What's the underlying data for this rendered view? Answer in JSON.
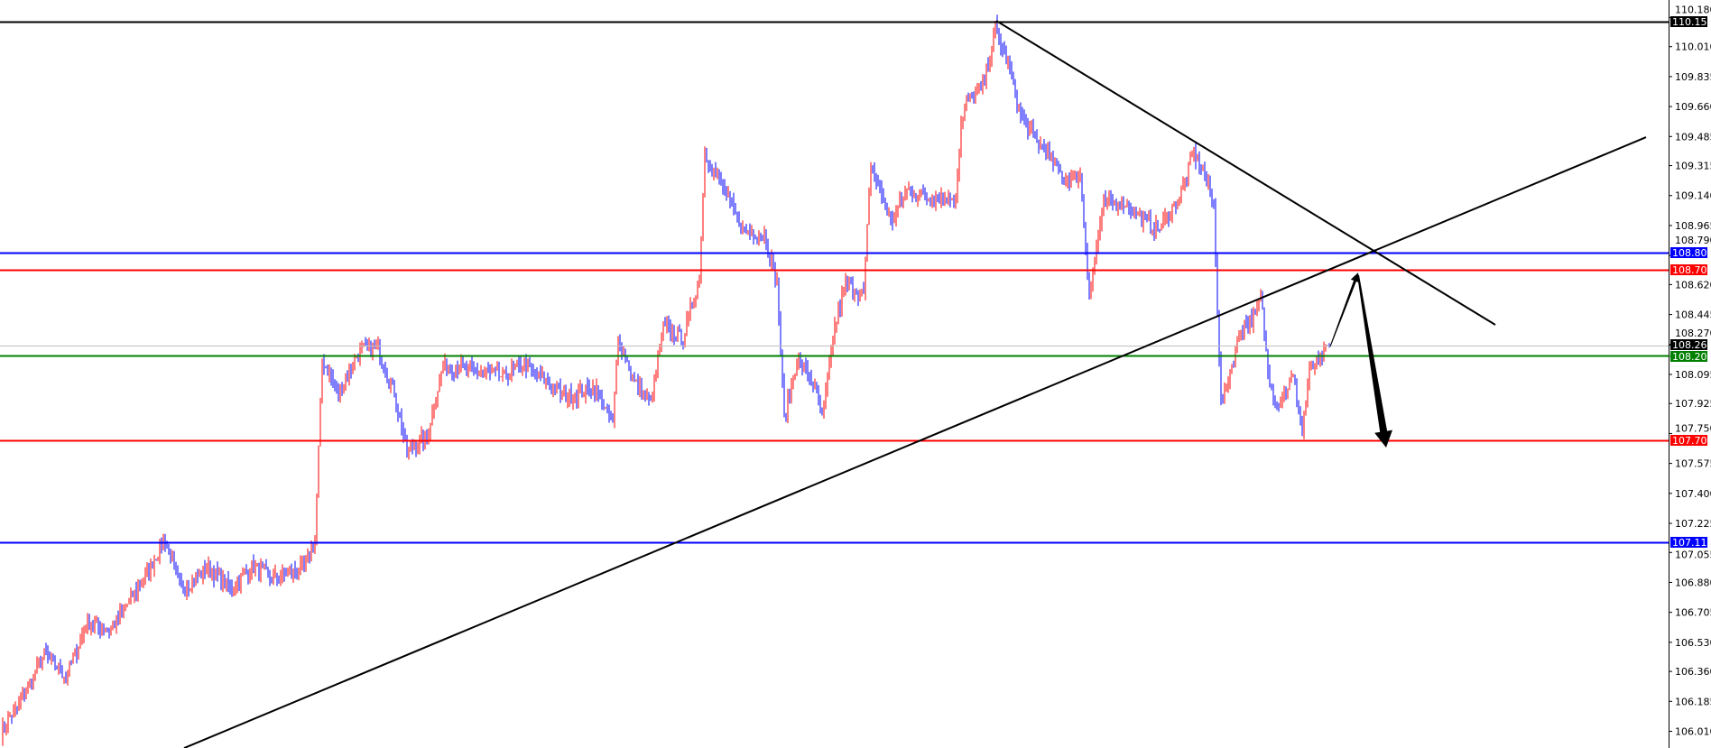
{
  "chart_data": {
    "type": "ohlc-bar",
    "title": "",
    "xlabel": "",
    "ylabel": "",
    "ylim": [
      105.92,
      110.27
    ],
    "grid": false,
    "colors": {
      "up": "#ff0000",
      "down": "#0000ff",
      "background": "#ffffff",
      "axis": "#000000"
    },
    "y_ticks": [
      "110.180",
      "110.010",
      "109.835",
      "109.660",
      "109.485",
      "109.315",
      "109.140",
      "108.965",
      "108.790",
      "108.620",
      "108.445",
      "108.270",
      "108.095",
      "107.925",
      "107.750",
      "107.575",
      "107.400",
      "107.225",
      "107.055",
      "106.880",
      "106.705",
      "106.530",
      "106.360",
      "106.185",
      "106.010"
    ],
    "close_path": [
      [
        0,
        106.01
      ],
      [
        12,
        106.2
      ],
      [
        24,
        106.46
      ],
      [
        36,
        106.33
      ],
      [
        48,
        106.65
      ],
      [
        60,
        106.59
      ],
      [
        79,
        106.9
      ],
      [
        91,
        107.13
      ],
      [
        100,
        106.84
      ],
      [
        115,
        106.97
      ],
      [
        127,
        106.84
      ],
      [
        139,
        106.97
      ],
      [
        151,
        106.9
      ],
      [
        169,
        106.97
      ],
      [
        174,
        107.13
      ],
      [
        178,
        108.18
      ],
      [
        187,
        107.99
      ],
      [
        199,
        108.24
      ],
      [
        209,
        108.24
      ],
      [
        218,
        107.99
      ],
      [
        225,
        107.64
      ],
      [
        236,
        107.73
      ],
      [
        245,
        108.15
      ],
      [
        266,
        108.11
      ],
      [
        278,
        108.08
      ],
      [
        290,
        108.15
      ],
      [
        302,
        108.05
      ],
      [
        314,
        107.96
      ],
      [
        329,
        108.02
      ],
      [
        339,
        107.8
      ],
      [
        342,
        108.31
      ],
      [
        351,
        108.05
      ],
      [
        360,
        107.92
      ],
      [
        367,
        108.37
      ],
      [
        378,
        108.31
      ],
      [
        387,
        108.66
      ],
      [
        390,
        109.39
      ],
      [
        399,
        109.2
      ],
      [
        411,
        108.94
      ],
      [
        423,
        108.91
      ],
      [
        430,
        108.63
      ],
      [
        434,
        107.83
      ],
      [
        441,
        108.18
      ],
      [
        450,
        108.05
      ],
      [
        455,
        107.83
      ],
      [
        462,
        108.37
      ],
      [
        468,
        108.63
      ],
      [
        478,
        108.56
      ],
      [
        482,
        109.33
      ],
      [
        493,
        108.98
      ],
      [
        502,
        109.17
      ],
      [
        514,
        109.13
      ],
      [
        529,
        109.13
      ],
      [
        532,
        109.55
      ],
      [
        535,
        109.68
      ],
      [
        544,
        109.77
      ],
      [
        551,
        110.12
      ],
      [
        559,
        109.87
      ],
      [
        565,
        109.61
      ],
      [
        574,
        109.45
      ],
      [
        580,
        109.39
      ],
      [
        589,
        109.23
      ],
      [
        598,
        109.26
      ],
      [
        603,
        108.56
      ],
      [
        611,
        109.1
      ],
      [
        623,
        109.1
      ],
      [
        632,
        109.01
      ],
      [
        641,
        108.94
      ],
      [
        653,
        109.13
      ],
      [
        661,
        109.39
      ],
      [
        667,
        109.26
      ],
      [
        672,
        109.07
      ],
      [
        676,
        107.92
      ],
      [
        683,
        108.18
      ],
      [
        687,
        108.37
      ],
      [
        695,
        108.43
      ],
      [
        698,
        108.56
      ],
      [
        702,
        108.11
      ],
      [
        707,
        107.92
      ],
      [
        716,
        108.08
      ],
      [
        721,
        107.77
      ],
      [
        725,
        108.11
      ],
      [
        731,
        108.18
      ],
      [
        736,
        108.26
      ]
    ],
    "horizontal_lines": [
      {
        "price": "110.155",
        "color": "#000000",
        "label_text_color": "#ffffff"
      },
      {
        "price": "108.807",
        "color": "#0000ff",
        "label_text_color": "#ffffff"
      },
      {
        "price": "108.705",
        "color": "#ff0000",
        "label_text_color": "#ffffff"
      },
      {
        "price": "108.261",
        "color": "#c0c0c0",
        "label_bg": "#000000",
        "label_text_color": "#ffffff"
      },
      {
        "price": "108.207",
        "color": "#008000",
        "label_text_color": "#ffffff"
      },
      {
        "price": "107.709",
        "color": "#ff0000",
        "label_text_color": "#ffffff"
      },
      {
        "price": "107.113",
        "color": "#0000ff",
        "label_text_color": "#ffffff"
      }
    ],
    "trendlines": [
      {
        "name": "descending-resistance",
        "from": [
          551.5,
          110.161
        ],
        "to": [
          828,
          108.385
        ]
      },
      {
        "name": "ascending-support",
        "from": [
          101.5,
          105.912
        ],
        "to": [
          911.5,
          109.481
        ]
      }
    ],
    "arrows": [
      {
        "name": "arrow-up",
        "from": [
          736.5,
          108.258
        ],
        "to": [
          752,
          108.69
        ],
        "weight": "thin"
      },
      {
        "name": "arrow-down",
        "from": [
          752,
          108.675
        ],
        "to": [
          767.5,
          107.668
        ],
        "weight": "thick"
      }
    ]
  }
}
